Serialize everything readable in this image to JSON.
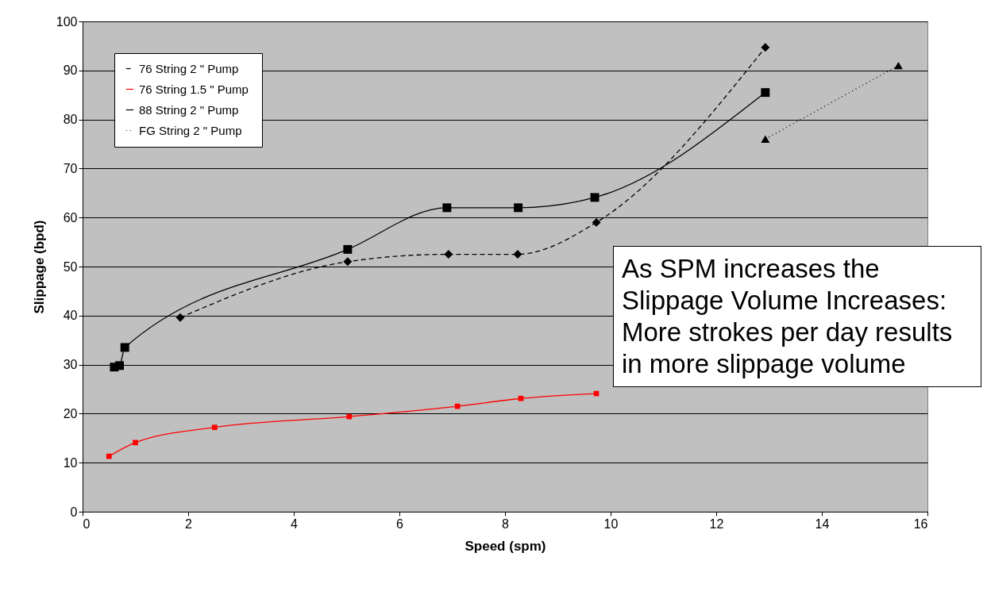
{
  "chart_data": {
    "type": "line",
    "xlabel": "Speed (spm)",
    "ylabel": "Slippage (bpd)",
    "xlim": [
      0,
      16
    ],
    "xticks": [
      0,
      2,
      4,
      6,
      8,
      10,
      12,
      14,
      16
    ],
    "ylim": [
      0,
      100
    ],
    "yticks": [
      0,
      10,
      20,
      30,
      40,
      50,
      60,
      70,
      80,
      90,
      100
    ],
    "grid": "y",
    "legend": "top left",
    "series": [
      {
        "name": "76 String  2 \" Pump",
        "color": "#000000",
        "marker": "diamond",
        "line_style": "dashed",
        "x": [
          1.85,
          5.02,
          6.93,
          8.24,
          9.73,
          12.93
        ],
        "values": [
          39.6,
          51,
          52.5,
          52.5,
          59,
          94.7
        ]
      },
      {
        "name": "76 String  1.5 \" Pump",
        "color": "#ff0000",
        "marker": "square",
        "line_style": "solid",
        "x": [
          0.5,
          1.0,
          2.5,
          5.05,
          7.1,
          8.3,
          9.73
        ],
        "values": [
          11.3,
          14.1,
          17.2,
          19.4,
          21.5,
          23.1,
          24.1
        ]
      },
      {
        "name": "88 String  2 \" Pump",
        "color": "#000000",
        "marker": "square",
        "line_style": "solid",
        "x": [
          0.6,
          0.7,
          0.8,
          5.02,
          6.9,
          8.25,
          9.7,
          12.93
        ],
        "values": [
          29.5,
          29.8,
          33.5,
          53.5,
          62,
          62,
          64.1,
          85.5
        ]
      },
      {
        "name": "FG String  2 \" Pump",
        "color": "#000000",
        "marker": "triangle",
        "line_style": "dotted",
        "x": [
          12.93,
          15.45
        ],
        "values": [
          76,
          91
        ]
      }
    ],
    "annotations": [
      "As SPM increases the Slippage Volume Increases: More strokes per day results in more slippage volume"
    ]
  }
}
